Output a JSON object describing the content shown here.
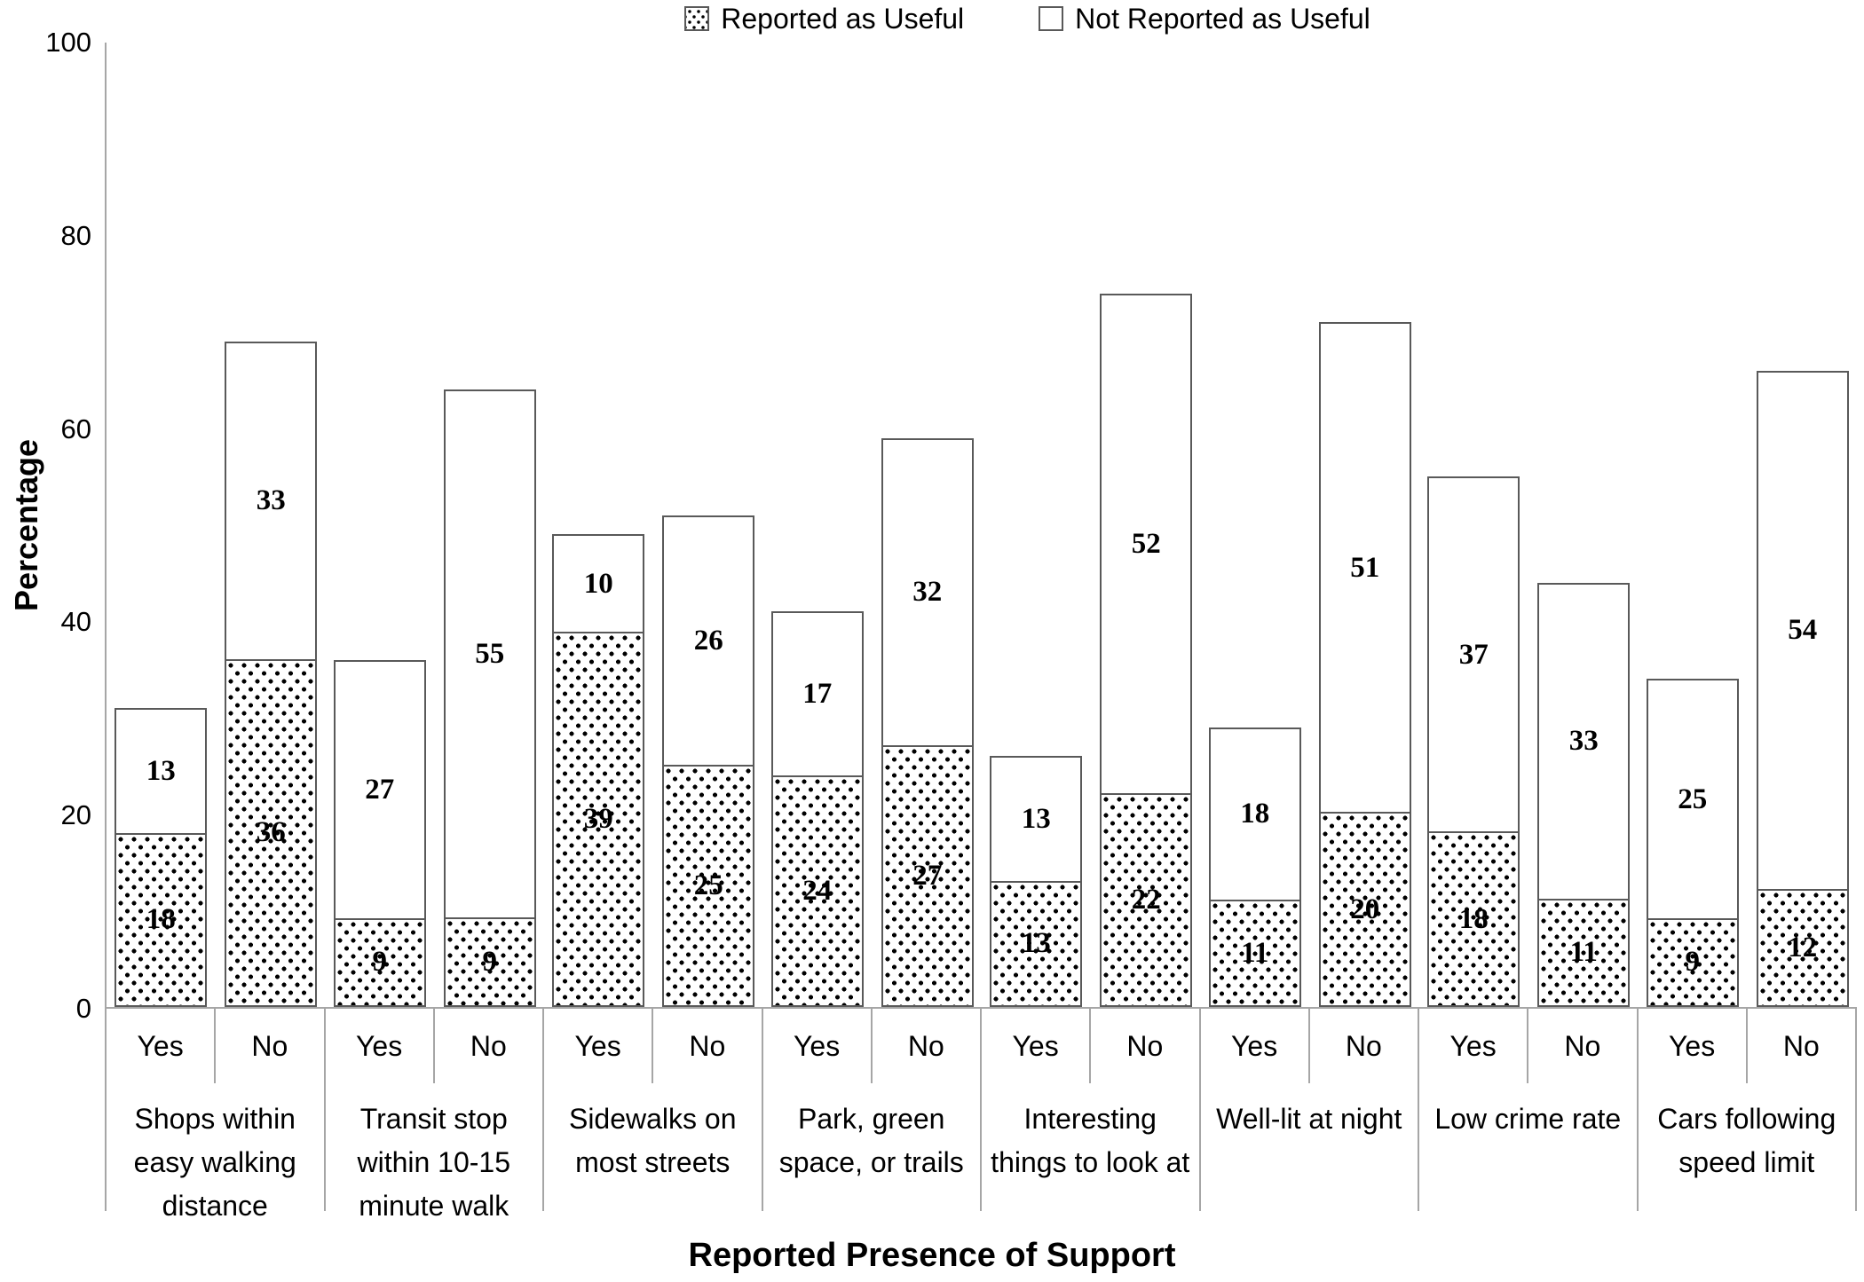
{
  "colors": {
    "background": "#ffffff",
    "axis_line": "#a6a6a6",
    "bar_border": "#595959",
    "dot_pattern": "#000000",
    "text": "#000000"
  },
  "legend": {
    "items": [
      {
        "label": "Reported as Useful",
        "swatch": "dotted"
      },
      {
        "label": "Not Reported as Useful",
        "swatch": "plain"
      }
    ]
  },
  "chart_data": {
    "type": "bar",
    "stacked": true,
    "orientation": "vertical",
    "title": "",
    "xlabel": "Reported Presence of Support",
    "ylabel": "Percentage",
    "ylim": [
      0,
      100
    ],
    "yticks": [
      0,
      20,
      40,
      60,
      80,
      100
    ],
    "grid": false,
    "bar_value_labels_shown": true,
    "legend_position": "top-center",
    "legend_entries": [
      "Reported as Useful",
      "Not Reported as Useful"
    ],
    "x_sub_categories": [
      "Yes",
      "No"
    ],
    "groups": [
      {
        "category": "Shops within easy walking distance",
        "label_lines": [
          "Shops within",
          "easy walking",
          "distance"
        ],
        "bars": [
          {
            "x": "Yes",
            "reported_useful": 18,
            "not_reported_useful": 13
          },
          {
            "x": "No",
            "reported_useful": 36,
            "not_reported_useful": 33
          }
        ]
      },
      {
        "category": "Transit stop within 10-15 minute walk",
        "label_lines": [
          "Transit stop",
          "within 10-15",
          "minute walk"
        ],
        "bars": [
          {
            "x": "Yes",
            "reported_useful": 9,
            "not_reported_useful": 27
          },
          {
            "x": "No",
            "reported_useful": 9,
            "not_reported_useful": 55
          }
        ]
      },
      {
        "category": "Sidewalks on most streets",
        "label_lines": [
          "Sidewalks on",
          "most streets"
        ],
        "bars": [
          {
            "x": "Yes",
            "reported_useful": 39,
            "not_reported_useful": 10
          },
          {
            "x": "No",
            "reported_useful": 25,
            "not_reported_useful": 26
          }
        ]
      },
      {
        "category": "Park, green space, or trails",
        "label_lines": [
          "Park, green",
          "space, or trails"
        ],
        "bars": [
          {
            "x": "Yes",
            "reported_useful": 24,
            "not_reported_useful": 17
          },
          {
            "x": "No",
            "reported_useful": 27,
            "not_reported_useful": 32
          }
        ]
      },
      {
        "category": "Interesting things to look at",
        "label_lines": [
          "Interesting",
          "things to look at"
        ],
        "bars": [
          {
            "x": "Yes",
            "reported_useful": 13,
            "not_reported_useful": 13
          },
          {
            "x": "No",
            "reported_useful": 22,
            "not_reported_useful": 52
          }
        ]
      },
      {
        "category": "Well-lit at night",
        "label_lines": [
          "Well-lit at night"
        ],
        "bars": [
          {
            "x": "Yes",
            "reported_useful": 11,
            "not_reported_useful": 18
          },
          {
            "x": "No",
            "reported_useful": 20,
            "not_reported_useful": 51
          }
        ]
      },
      {
        "category": "Low crime rate",
        "label_lines": [
          "Low crime rate"
        ],
        "bars": [
          {
            "x": "Yes",
            "reported_useful": 18,
            "not_reported_useful": 37
          },
          {
            "x": "No",
            "reported_useful": 11,
            "not_reported_useful": 33
          }
        ]
      },
      {
        "category": "Cars following speed limit",
        "label_lines": [
          "Cars following",
          "speed limit"
        ],
        "bars": [
          {
            "x": "Yes",
            "reported_useful": 9,
            "not_reported_useful": 25
          },
          {
            "x": "No",
            "reported_useful": 12,
            "not_reported_useful": 54
          }
        ]
      }
    ],
    "series": [
      {
        "name": "Reported as Useful",
        "values": [
          18,
          36,
          9,
          9,
          39,
          25,
          24,
          27,
          13,
          22,
          11,
          20,
          18,
          11,
          9,
          12
        ]
      },
      {
        "name": "Not Reported as Useful",
        "values": [
          13,
          33,
          27,
          55,
          10,
          26,
          17,
          32,
          13,
          52,
          18,
          51,
          37,
          33,
          25,
          54
        ]
      }
    ]
  }
}
